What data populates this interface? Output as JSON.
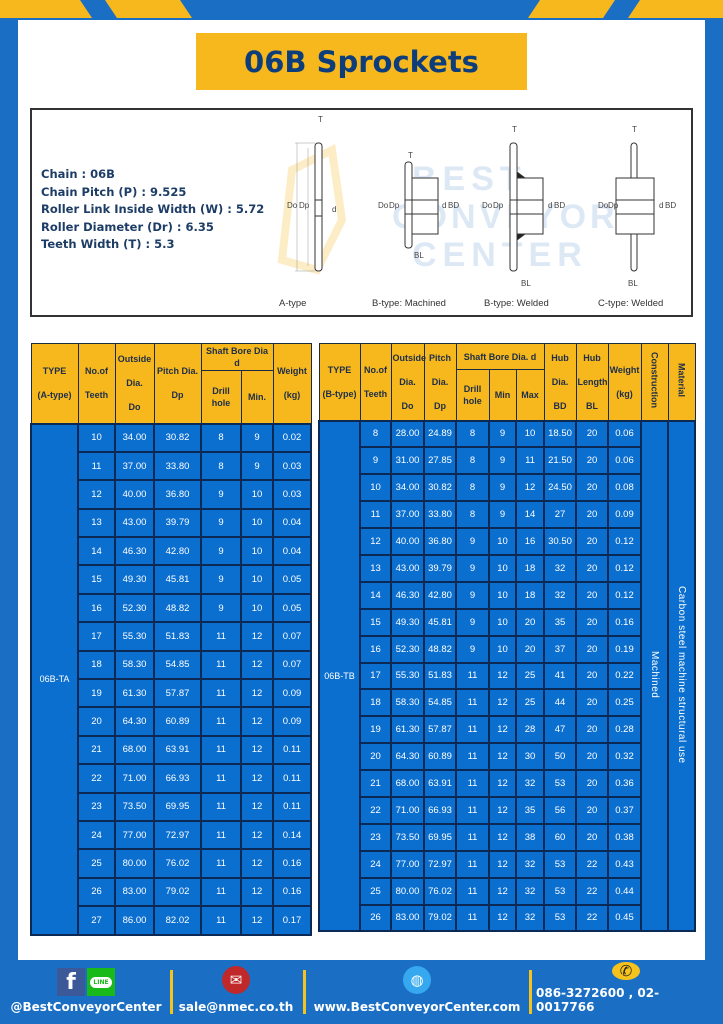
{
  "title": "06B Sprockets",
  "specs": [
    "Chain : 06B",
    "Chain Pitch (P) : 9.525",
    "Roller Link Inside Width (W) : 5.72",
    "Roller Diameter (Dr) : 6.35",
    "Teeth Width (T) : 5.3"
  ],
  "diagram": {
    "types": [
      "A-type",
      "B-type: Machined",
      "B-type: Welded",
      "C-type: Welded"
    ],
    "labels": {
      "T": "T",
      "Do": "Do",
      "Dp": "Dp",
      "d": "d",
      "BD": "BD",
      "BL": "BL"
    }
  },
  "watermark": "BEST CONVEYOR CENTER",
  "colors": {
    "brand_blue": "#1a6fc4",
    "accent_yellow": "#f6b81c",
    "cell_blue": "#0b6fd0"
  },
  "table_a": {
    "headers": {
      "type": "TYPE",
      "type_sub": "(A-type)",
      "teeth": "No.of",
      "teeth_sub": "Teeth",
      "do": "Outside",
      "do_sub": "Dia.",
      "do_sub2": "Do",
      "dp": "Pitch Dia.",
      "dp_sub": "Dp",
      "bore": "Shaft Bore Dia d",
      "drill": "Drill hole",
      "min": "Min.",
      "weight": "Weight",
      "weight_sub": "(kg)"
    },
    "type_value": "06B-TA",
    "rows": [
      [
        "10",
        "34.00",
        "30.82",
        "8",
        "9",
        "0.02"
      ],
      [
        "11",
        "37.00",
        "33.80",
        "8",
        "9",
        "0.03"
      ],
      [
        "12",
        "40.00",
        "36.80",
        "9",
        "10",
        "0.03"
      ],
      [
        "13",
        "43.00",
        "39.79",
        "9",
        "10",
        "0.04"
      ],
      [
        "14",
        "46.30",
        "42.80",
        "9",
        "10",
        "0.04"
      ],
      [
        "15",
        "49.30",
        "45.81",
        "9",
        "10",
        "0.05"
      ],
      [
        "16",
        "52.30",
        "48.82",
        "9",
        "10",
        "0.05"
      ],
      [
        "17",
        "55.30",
        "51.83",
        "11",
        "12",
        "0.07"
      ],
      [
        "18",
        "58.30",
        "54.85",
        "11",
        "12",
        "0.07"
      ],
      [
        "19",
        "61.30",
        "57.87",
        "11",
        "12",
        "0.09"
      ],
      [
        "20",
        "64.30",
        "60.89",
        "11",
        "12",
        "0.09"
      ],
      [
        "21",
        "68.00",
        "63.91",
        "11",
        "12",
        "0.11"
      ],
      [
        "22",
        "71.00",
        "66.93",
        "11",
        "12",
        "0.11"
      ],
      [
        "23",
        "73.50",
        "69.95",
        "11",
        "12",
        "0.11"
      ],
      [
        "24",
        "77.00",
        "72.97",
        "11",
        "12",
        "0.14"
      ],
      [
        "25",
        "80.00",
        "76.02",
        "11",
        "12",
        "0.16"
      ],
      [
        "26",
        "83.00",
        "79.02",
        "11",
        "12",
        "0.16"
      ],
      [
        "27",
        "86.00",
        "82.02",
        "11",
        "12",
        "0.17"
      ]
    ]
  },
  "table_b": {
    "headers": {
      "type": "TYPE",
      "type_sub": "(B-type)",
      "teeth": "No.of",
      "teeth_sub": "Teeth",
      "do": "Outside",
      "do_sub": "Dia.",
      "do_sub2": "Do",
      "dp": "Pitch",
      "dp_sub": "Dia.",
      "dp_sub2": "Dp",
      "bore": "Shaft Bore Dia. d",
      "drill": "Drill hole",
      "min": "Min",
      "max": "Max",
      "hub_dia": "Hub",
      "hub_dia_sub": "Dia.",
      "hub_dia_sub2": "BD",
      "hub_len": "Hub",
      "hub_len_sub": "Length",
      "hub_len_sub2": "BL",
      "weight": "Weight",
      "weight_sub": "(kg)",
      "construction": "Construction",
      "material": "Material"
    },
    "type_value": "06B-TB",
    "construction_value": "Machined",
    "material_value": "Carbon steel machine structural use",
    "rows": [
      [
        "8",
        "28.00",
        "24.89",
        "8",
        "9",
        "10",
        "18.50",
        "20",
        "0.06"
      ],
      [
        "9",
        "31.00",
        "27.85",
        "8",
        "9",
        "11",
        "21.50",
        "20",
        "0.06"
      ],
      [
        "10",
        "34.00",
        "30.82",
        "8",
        "9",
        "12",
        "24.50",
        "20",
        "0.08"
      ],
      [
        "11",
        "37.00",
        "33.80",
        "8",
        "9",
        "14",
        "27",
        "20",
        "0.09"
      ],
      [
        "12",
        "40.00",
        "36.80",
        "9",
        "10",
        "16",
        "30.50",
        "20",
        "0.12"
      ],
      [
        "13",
        "43.00",
        "39.79",
        "9",
        "10",
        "18",
        "32",
        "20",
        "0.12"
      ],
      [
        "14",
        "46.30",
        "42.80",
        "9",
        "10",
        "18",
        "32",
        "20",
        "0.12"
      ],
      [
        "15",
        "49.30",
        "45.81",
        "9",
        "10",
        "20",
        "35",
        "20",
        "0.16"
      ],
      [
        "16",
        "52.30",
        "48.82",
        "9",
        "10",
        "20",
        "37",
        "20",
        "0.19"
      ],
      [
        "17",
        "55.30",
        "51.83",
        "11",
        "12",
        "25",
        "41",
        "20",
        "0.22"
      ],
      [
        "18",
        "58.30",
        "54.85",
        "11",
        "12",
        "25",
        "44",
        "20",
        "0.25"
      ],
      [
        "19",
        "61.30",
        "57.87",
        "11",
        "12",
        "28",
        "47",
        "20",
        "0.28"
      ],
      [
        "20",
        "64.30",
        "60.89",
        "11",
        "12",
        "30",
        "50",
        "20",
        "0.32"
      ],
      [
        "21",
        "68.00",
        "63.91",
        "11",
        "12",
        "32",
        "53",
        "20",
        "0.36"
      ],
      [
        "22",
        "71.00",
        "66.93",
        "11",
        "12",
        "35",
        "56",
        "20",
        "0.37"
      ],
      [
        "23",
        "73.50",
        "69.95",
        "11",
        "12",
        "38",
        "60",
        "20",
        "0.38"
      ],
      [
        "24",
        "77.00",
        "72.97",
        "11",
        "12",
        "32",
        "53",
        "22",
        "0.43"
      ],
      [
        "25",
        "80.00",
        "76.02",
        "11",
        "12",
        "32",
        "53",
        "22",
        "0.44"
      ],
      [
        "26",
        "83.00",
        "79.02",
        "11",
        "12",
        "32",
        "53",
        "22",
        "0.45"
      ]
    ]
  },
  "footer": {
    "social": "@BestConveyorCenter",
    "line_badge": "LINE",
    "email": "sale@nmec.co.th",
    "website": "www.BestConveyorCenter.com",
    "phone": "086-3272600 , 02-0017766"
  }
}
